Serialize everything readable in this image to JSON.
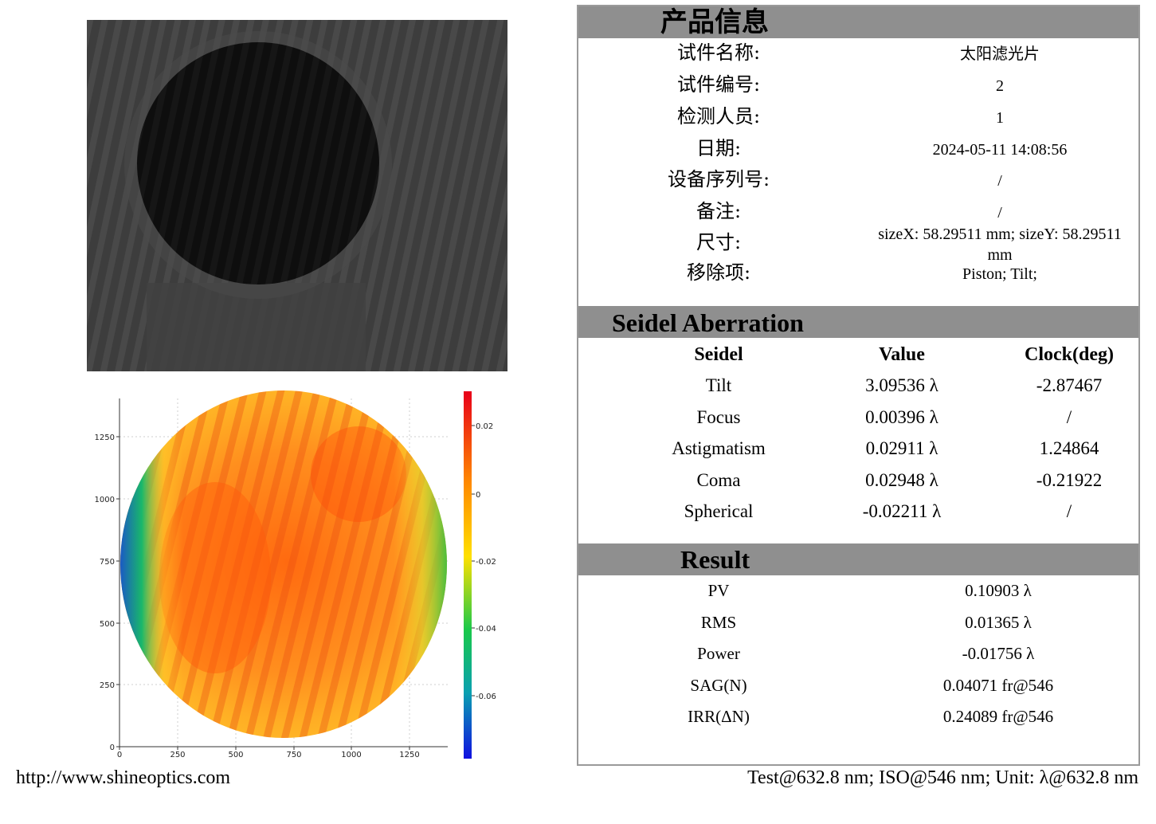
{
  "product_info": {
    "title": "产品信息",
    "rows": [
      {
        "label": "试件名称:",
        "value": "太阳滤光片"
      },
      {
        "label": "试件编号:",
        "value": "2"
      },
      {
        "label": "检测人员:",
        "value": "1"
      },
      {
        "label": "日期:",
        "value": "2024-05-11 14:08:56"
      },
      {
        "label": "设备序列号:",
        "value": "/"
      },
      {
        "label": "备注:",
        "value": "/"
      },
      {
        "label": "尺寸:",
        "value": "sizeX: 58.29511 mm; sizeY: 58.29511",
        "value_line2": "mm"
      },
      {
        "label": "移除项:",
        "value": "Piston; Tilt;"
      }
    ]
  },
  "seidel": {
    "title": "Seidel Aberration",
    "headers": [
      "Seidel",
      "Value",
      "Clock(deg)"
    ],
    "rows": [
      {
        "name": "Tilt",
        "value": "3.09536 λ",
        "clock": "-2.87467"
      },
      {
        "name": "Focus",
        "value": "0.00396 λ",
        "clock": "/"
      },
      {
        "name": "Astigmatism",
        "value": "0.02911 λ",
        "clock": "1.24864"
      },
      {
        "name": "Coma",
        "value": "0.02948 λ",
        "clock": "-0.21922"
      },
      {
        "name": "Spherical",
        "value": "-0.02211 λ",
        "clock": "/"
      }
    ]
  },
  "result": {
    "title": "Result",
    "rows": [
      {
        "name": "PV",
        "value": "0.10903 λ"
      },
      {
        "name": "RMS",
        "value": "0.01365 λ"
      },
      {
        "name": "Power",
        "value": "-0.01756 λ"
      },
      {
        "name": "SAG(N)",
        "value": "0.04071 fr@546"
      },
      {
        "name": "IRR(ΔN)",
        "value": "0.24089 fr@546"
      }
    ]
  },
  "surface_map": {
    "x_ticks": [
      "0",
      "250",
      "500",
      "750",
      "1000",
      "1250"
    ],
    "y_ticks": [
      "0",
      "250",
      "500",
      "750",
      "1000",
      "1250"
    ],
    "colorbar_ticks": [
      "0.02",
      "0",
      "-0.02",
      "-0.04",
      "-0.06"
    ]
  },
  "footer": {
    "url": "http://www.shineoptics.com",
    "units": "Test@632.8 nm; ISO@546 nm; Unit: λ@632.8 nm"
  }
}
